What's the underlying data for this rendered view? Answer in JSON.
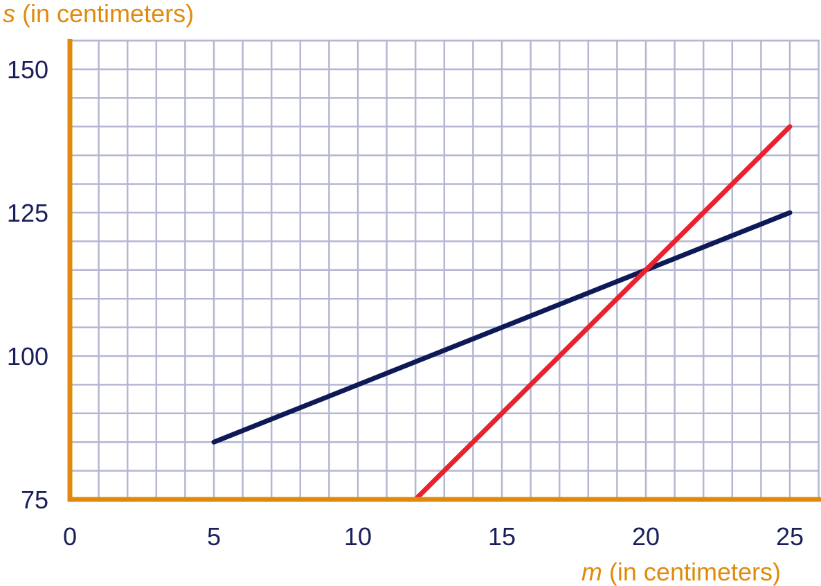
{
  "chart_data": {
    "type": "line",
    "xlabel_var": "m",
    "xlabel_rest": " (in centimeters)",
    "ylabel_var": "s",
    "ylabel_rest": " (in centimeters)",
    "xlim": [
      0,
      26
    ],
    "ylim": [
      75,
      155
    ],
    "x_ticks": [
      0,
      5,
      10,
      15,
      20,
      25
    ],
    "y_ticks": [
      75,
      100,
      125,
      150
    ],
    "x_grid_step": 1,
    "y_grid_step": 5,
    "grid": true,
    "series": [
      {
        "x": [
          5,
          25
        ],
        "y": [
          85,
          125
        ],
        "color": "#0d1a57"
      },
      {
        "x": [
          12,
          25
        ],
        "y": [
          75,
          140
        ],
        "color": "#e8222f"
      }
    ],
    "axis_color": "#e08a0b",
    "grid_color": "#b4b6d3"
  }
}
